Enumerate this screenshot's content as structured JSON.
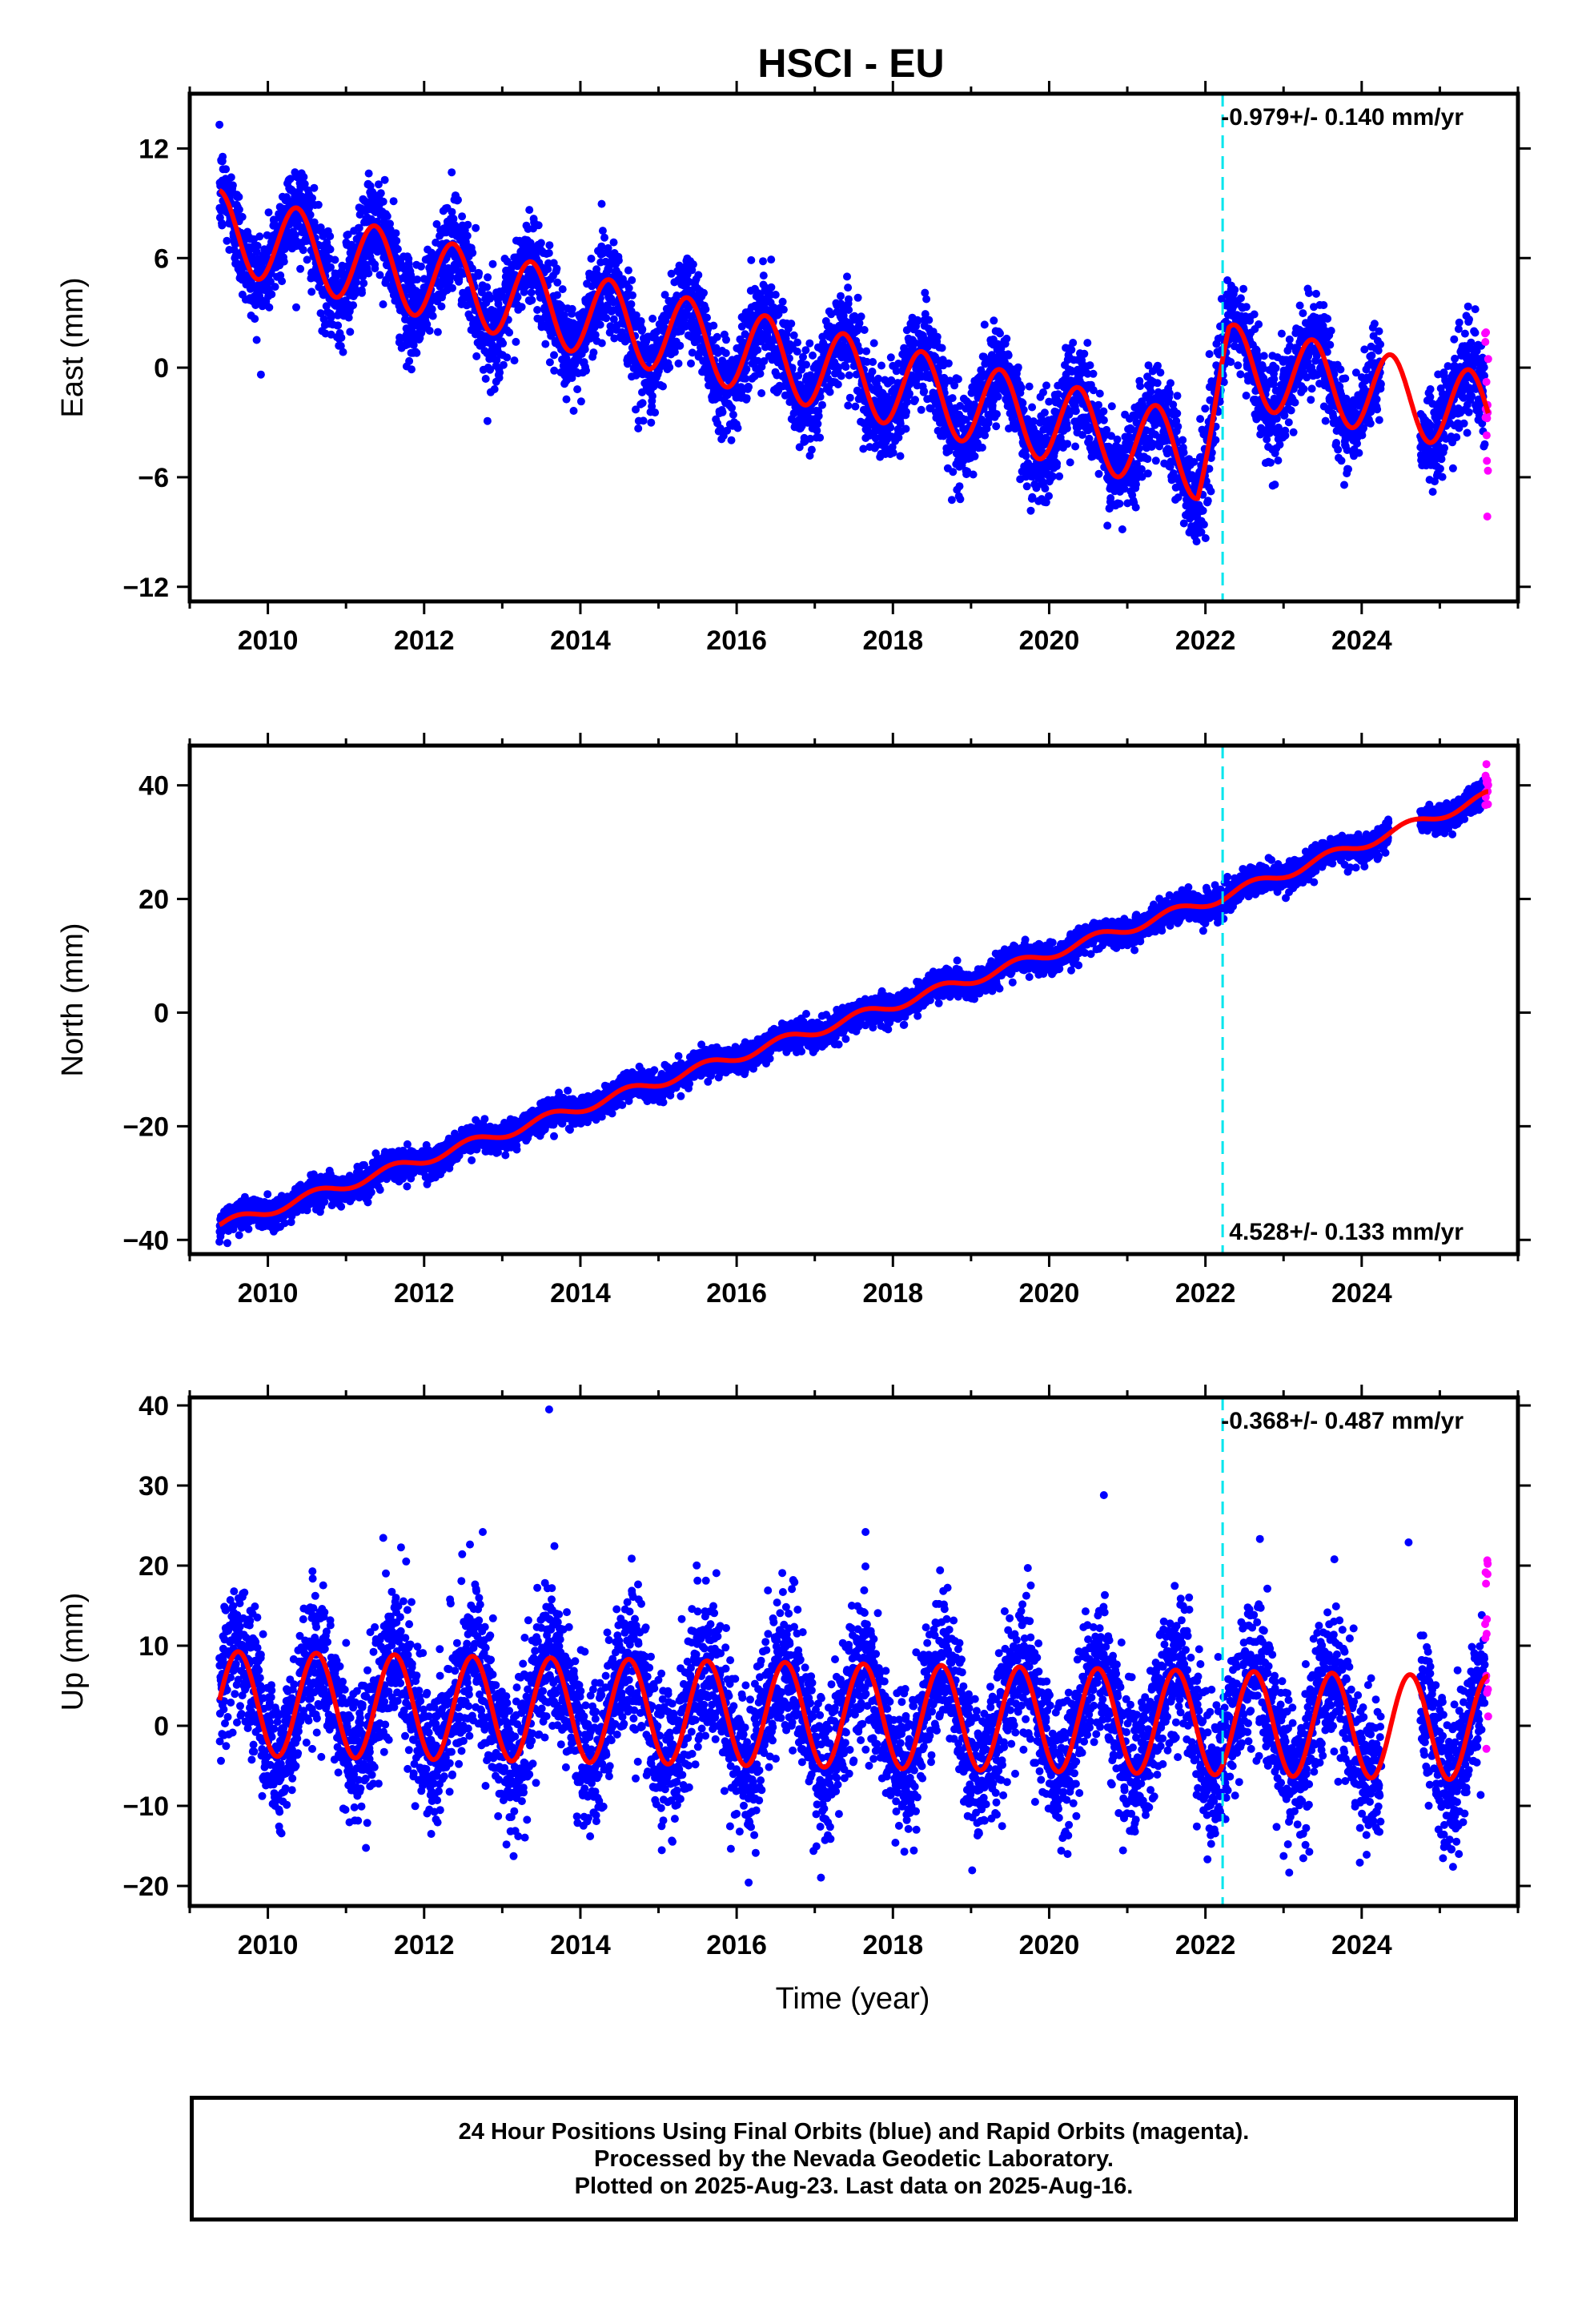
{
  "chart_data": {
    "title": "HSCI - EU",
    "type": "scatter",
    "xlabel": "Time (year)",
    "xlim": [
      2009.0,
      2026.0
    ],
    "xticks": [
      2010,
      2012,
      2014,
      2016,
      2018,
      2020,
      2022,
      2024
    ],
    "last_data": 2025.62,
    "first_data": 2009.38,
    "rapid_start": 2025.58,
    "event_line": {
      "x": 2022.22,
      "color": "#00e5ee",
      "style": "dashed"
    },
    "colors": {
      "final": "#0000ff",
      "rapid": "#ff00ff",
      "model": "#ff0000"
    },
    "panels": [
      {
        "id": "east",
        "ylabel": "East (mm)",
        "ylim": [
          -12.8,
          15.0
        ],
        "yticks": [
          12,
          6,
          0,
          -6,
          -12
        ],
        "rate_text": "-0.979+/- 0.140 mm/yr",
        "rate_pos": "top-right",
        "model": {
          "intercept": 6.7,
          "rate": -0.979,
          "amplitude": 2.2,
          "phase_peak": 0.37,
          "noise": 1.3
        },
        "trend_knots": [
          [
            2009.4,
            7.5
          ],
          [
            2021.4,
            -4.3
          ],
          [
            2021.9,
            -5.0
          ],
          [
            2022.3,
            0.2
          ],
          [
            2025.6,
            -2.5
          ]
        ]
      },
      {
        "id": "north",
        "ylabel": "North (mm)",
        "ylim": [
          -42.5,
          47.0
        ],
        "yticks": [
          40,
          20,
          0,
          -20,
          -40
        ],
        "rate_text": "4.528+/- 0.133 mm/yr",
        "rate_pos": "bottom-right",
        "model": {
          "intercept": -37.5,
          "rate": 4.528,
          "amplitude": 0.9,
          "phase_peak": 0.6,
          "noise": 1.2
        },
        "trend_knots": [
          [
            2009.4,
            -37.5
          ],
          [
            2022.2,
            20.3
          ],
          [
            2025.6,
            38.0
          ]
        ]
      },
      {
        "id": "up",
        "ylabel": "Up (mm)",
        "ylim": [
          -22.5,
          41.0
        ],
        "yticks": [
          40,
          30,
          20,
          10,
          0,
          -10,
          -20
        ],
        "rate_text": "-0.368+/- 0.487 mm/yr",
        "rate_pos": "top-right",
        "model": {
          "intercept": 2.8,
          "rate": -0.368,
          "amplitude": 6.5,
          "phase_peak": 0.62,
          "noise": 4.5
        },
        "trend_knots": [
          [
            2009.4,
            2.8
          ],
          [
            2025.6,
            -0.3
          ]
        ],
        "outliers": [
          [
            2013.6,
            39.5
          ],
          [
            2012.75,
            24.2
          ],
          [
            2017.65,
            24.2
          ],
          [
            2020.7,
            28.8
          ],
          [
            2024.6,
            22.9
          ]
        ]
      }
    ]
  },
  "footer": {
    "line1": "24 Hour Positions Using Final Orbits (blue) and Rapid Orbits (magenta).",
    "line2": "Processed by the Nevada Geodetic Laboratory.",
    "line3": "Plotted on 2025-Aug-23. Last data on 2025-Aug-16."
  }
}
